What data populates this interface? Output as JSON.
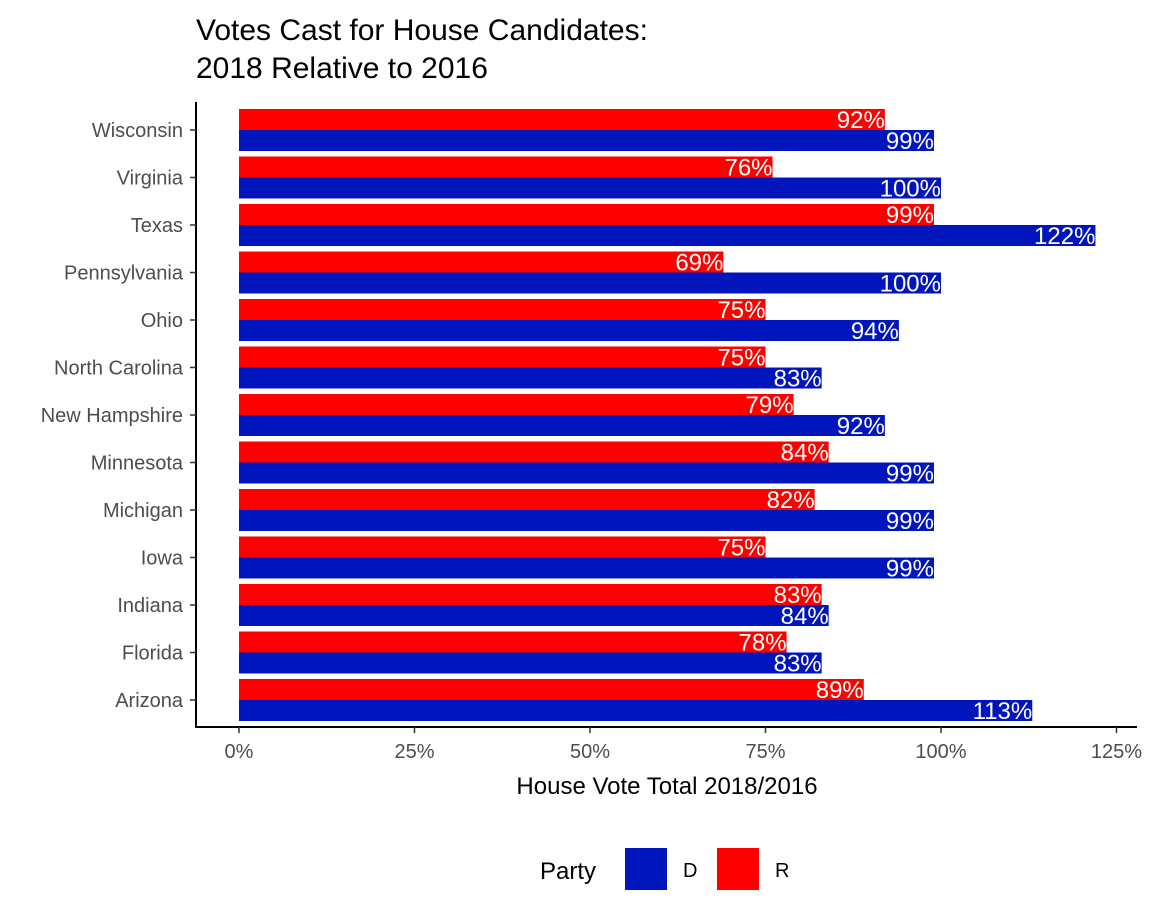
{
  "chart_data": {
    "type": "bar",
    "orientation": "horizontal",
    "title_lines": [
      "Votes Cast for House Candidates:",
      "2018 Relative to 2016"
    ],
    "xlabel": "House Vote Total 2018/2016",
    "ylabel": "",
    "xlim": [
      0,
      1.25
    ],
    "x_ticks": [
      0,
      0.25,
      0.5,
      0.75,
      1.0,
      1.25
    ],
    "x_tick_labels": [
      "0%",
      "25%",
      "50%",
      "75%",
      "100%",
      "125%"
    ],
    "grid": false,
    "legend_position": "bottom",
    "legend_title": "Party",
    "categories": [
      "Wisconsin",
      "Virginia",
      "Texas",
      "Pennsylvania",
      "Ohio",
      "North Carolina",
      "New Hampshire",
      "Minnesota",
      "Michigan",
      "Iowa",
      "Indiana",
      "Florida",
      "Arizona"
    ],
    "series": [
      {
        "name": "R",
        "color": "#ff0000",
        "values": [
          0.92,
          0.76,
          0.99,
          0.69,
          0.75,
          0.75,
          0.79,
          0.84,
          0.82,
          0.75,
          0.83,
          0.78,
          0.89
        ],
        "labels": [
          "92%",
          "76%",
          "99%",
          "69%",
          "75%",
          "75%",
          "79%",
          "84%",
          "82%",
          "75%",
          "83%",
          "78%",
          "89%"
        ]
      },
      {
        "name": "D",
        "color": "#0015bc",
        "values": [
          0.99,
          1.0,
          1.22,
          1.0,
          0.94,
          0.83,
          0.92,
          0.99,
          0.99,
          0.99,
          0.84,
          0.83,
          1.13
        ],
        "labels": [
          "99%",
          "100%",
          "122%",
          "100%",
          "94%",
          "83%",
          "92%",
          "99%",
          "99%",
          "99%",
          "84%",
          "83%",
          "113%"
        ]
      }
    ],
    "legend_order": [
      "D",
      "R"
    ]
  }
}
